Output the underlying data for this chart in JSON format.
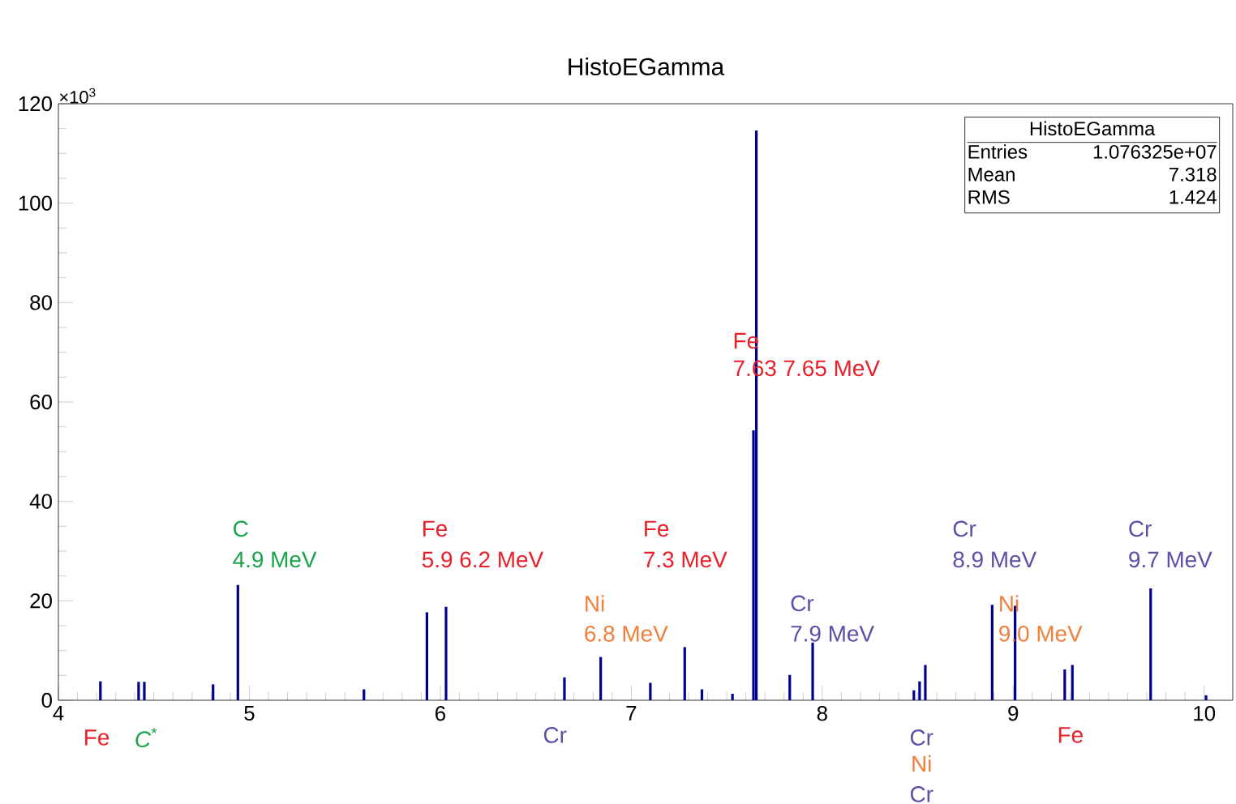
{
  "chart_data": {
    "type": "bar",
    "title": "HistoEGamma",
    "color": "#00008f",
    "x": [
      4.22,
      4.42,
      4.45,
      4.81,
      4.94,
      5.6,
      5.93,
      6.03,
      6.65,
      6.84,
      7.1,
      7.28,
      7.37,
      7.53,
      7.64,
      7.655,
      7.83,
      7.95,
      8.48,
      8.51,
      8.54,
      8.89,
      9.01,
      9.27,
      9.31,
      9.72,
      10.01
    ],
    "values": [
      3.8,
      3.7,
      3.7,
      3.2,
      23.2,
      2.2,
      17.7,
      18.8,
      4.6,
      8.7,
      3.5,
      10.7,
      2.2,
      1.3,
      54.3,
      114.6,
      5.1,
      11.6,
      2.0,
      3.8,
      7.1,
      19.2,
      19.0,
      6.2,
      7.1,
      22.5,
      1.0
    ],
    "xlim": [
      4,
      10.15
    ],
    "ylim": [
      0,
      120
    ],
    "xticks": [
      4,
      5,
      6,
      7,
      8,
      9,
      10
    ],
    "yticks": [
      0,
      20,
      40,
      60,
      80,
      100,
      120
    ],
    "annotations": [
      "×10$^{3}$",
      "HistoEGamma",
      "Entries",
      "1.076325e+07",
      "Mean",
      "7.318",
      "RMS",
      "1.424",
      "C",
      "4.9 MeV",
      "Fe",
      "5.9 6.2 MeV",
      "Ni",
      "6.8 MeV",
      "Fe",
      "7.3 MeV",
      "Fe",
      "7.63 7.65 MeV",
      "Cr",
      "7.9 MeV",
      "Cr",
      "8.9 MeV",
      "Ni",
      "9.0 MeV",
      "Cr",
      "9.7 MeV",
      "Fe",
      "*C*$^{*}$",
      "Cr",
      "Cr",
      "Ni",
      "Cr",
      "Fe"
    ]
  }
}
